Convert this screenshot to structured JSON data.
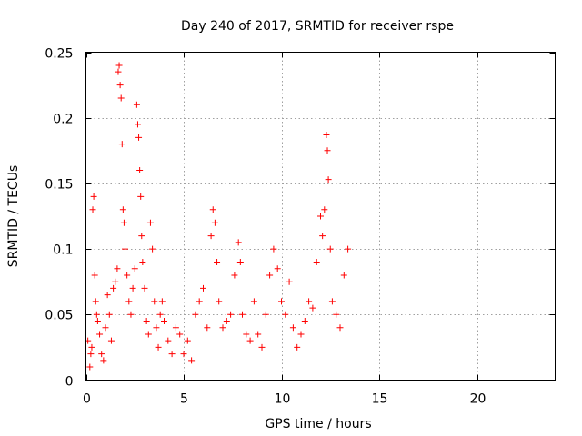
{
  "chart_data": {
    "type": "scatter",
    "title": "Day 240 of 2017, SRMTID for receiver rspe",
    "xlabel": "GPS time / hours",
    "ylabel": "SRMTID / TECUs",
    "xlim": [
      0,
      24
    ],
    "ylim": [
      0,
      0.25
    ],
    "x_ticks": [
      0,
      5,
      10,
      15,
      20
    ],
    "x_tick_labels": [
      "0",
      "5",
      "10",
      "15",
      "20"
    ],
    "y_ticks": [
      0,
      0.05,
      0.1,
      0.15,
      0.2,
      0.25
    ],
    "y_tick_labels": [
      "0",
      "0.05",
      "0.1",
      "0.15",
      "0.2",
      "0.25"
    ],
    "grid": true,
    "marker": "+",
    "marker_color": "#ff0000",
    "series": [
      {
        "name": "SRMTID",
        "data_coverage_hours": [
          0,
          13.5
        ],
        "points": [
          [
            0.1,
            0.03
          ],
          [
            0.2,
            0.01
          ],
          [
            0.25,
            0.02
          ],
          [
            0.3,
            0.025
          ],
          [
            0.35,
            0.13
          ],
          [
            0.4,
            0.14
          ],
          [
            0.45,
            0.08
          ],
          [
            0.5,
            0.06
          ],
          [
            0.55,
            0.05
          ],
          [
            0.6,
            0.045
          ],
          [
            0.7,
            0.035
          ],
          [
            0.8,
            0.02
          ],
          [
            0.9,
            0.015
          ],
          [
            1.0,
            0.04
          ],
          [
            1.1,
            0.065
          ],
          [
            1.2,
            0.05
          ],
          [
            1.3,
            0.03
          ],
          [
            1.4,
            0.07
          ],
          [
            1.5,
            0.075
          ],
          [
            1.6,
            0.085
          ],
          [
            1.65,
            0.235
          ],
          [
            1.7,
            0.24
          ],
          [
            1.75,
            0.225
          ],
          [
            1.8,
            0.215
          ],
          [
            1.85,
            0.18
          ],
          [
            1.9,
            0.13
          ],
          [
            1.95,
            0.12
          ],
          [
            2.0,
            0.1
          ],
          [
            2.1,
            0.08
          ],
          [
            2.2,
            0.06
          ],
          [
            2.3,
            0.05
          ],
          [
            2.4,
            0.07
          ],
          [
            2.5,
            0.085
          ],
          [
            2.6,
            0.21
          ],
          [
            2.65,
            0.195
          ],
          [
            2.7,
            0.185
          ],
          [
            2.75,
            0.16
          ],
          [
            2.8,
            0.14
          ],
          [
            2.85,
            0.11
          ],
          [
            2.9,
            0.09
          ],
          [
            3.0,
            0.07
          ],
          [
            3.1,
            0.045
          ],
          [
            3.2,
            0.035
          ],
          [
            3.3,
            0.12
          ],
          [
            3.4,
            0.1
          ],
          [
            3.5,
            0.06
          ],
          [
            3.6,
            0.04
          ],
          [
            3.7,
            0.025
          ],
          [
            3.8,
            0.05
          ],
          [
            3.9,
            0.06
          ],
          [
            4.0,
            0.045
          ],
          [
            4.2,
            0.03
          ],
          [
            4.4,
            0.02
          ],
          [
            4.6,
            0.04
          ],
          [
            4.8,
            0.035
          ],
          [
            5.0,
            0.02
          ],
          [
            5.2,
            0.03
          ],
          [
            5.4,
            0.015
          ],
          [
            5.6,
            0.05
          ],
          [
            5.8,
            0.06
          ],
          [
            6.0,
            0.07
          ],
          [
            6.2,
            0.04
          ],
          [
            6.4,
            0.11
          ],
          [
            6.5,
            0.13
          ],
          [
            6.6,
            0.12
          ],
          [
            6.7,
            0.09
          ],
          [
            6.8,
            0.06
          ],
          [
            7.0,
            0.04
          ],
          [
            7.2,
            0.045
          ],
          [
            7.4,
            0.05
          ],
          [
            7.6,
            0.08
          ],
          [
            7.8,
            0.105
          ],
          [
            7.9,
            0.09
          ],
          [
            8.0,
            0.05
          ],
          [
            8.2,
            0.035
          ],
          [
            8.4,
            0.03
          ],
          [
            8.6,
            0.06
          ],
          [
            8.8,
            0.035
          ],
          [
            9.0,
            0.025
          ],
          [
            9.2,
            0.05
          ],
          [
            9.4,
            0.08
          ],
          [
            9.6,
            0.1
          ],
          [
            9.8,
            0.085
          ],
          [
            10.0,
            0.06
          ],
          [
            10.2,
            0.05
          ],
          [
            10.4,
            0.075
          ],
          [
            10.6,
            0.04
          ],
          [
            10.8,
            0.025
          ],
          [
            11.0,
            0.035
          ],
          [
            11.2,
            0.045
          ],
          [
            11.4,
            0.06
          ],
          [
            11.6,
            0.055
          ],
          [
            11.8,
            0.09
          ],
          [
            12.0,
            0.125
          ],
          [
            12.1,
            0.11
          ],
          [
            12.2,
            0.13
          ],
          [
            12.3,
            0.187
          ],
          [
            12.35,
            0.175
          ],
          [
            12.4,
            0.153
          ],
          [
            12.5,
            0.1
          ],
          [
            12.6,
            0.06
          ],
          [
            12.8,
            0.05
          ],
          [
            13.0,
            0.04
          ],
          [
            13.2,
            0.08
          ],
          [
            13.4,
            0.1
          ]
        ]
      }
    ]
  }
}
